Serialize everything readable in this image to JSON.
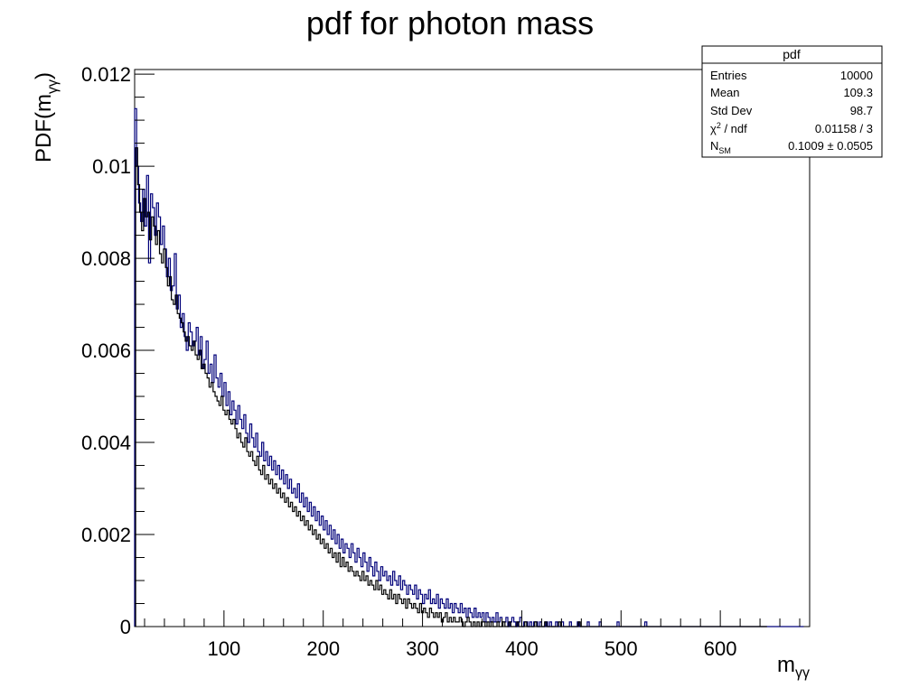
{
  "chart_data": {
    "type": "bar",
    "title": "pdf for photon mass",
    "xlabel": "m",
    "xlabel_sub": "γγ",
    "ylabel": "PDF(m",
    "ylabel_sub": "γγ",
    "ylabel_close": ")",
    "xlim": [
      10,
      690
    ],
    "ylim": [
      0,
      0.0121
    ],
    "x_ticks": [
      100,
      200,
      300,
      400,
      500,
      600
    ],
    "x_tick_labels": [
      "100",
      "200",
      "300",
      "400",
      "500",
      "600"
    ],
    "y_ticks": [
      0,
      0.002,
      0.004,
      0.006,
      0.008,
      0.01,
      0.012
    ],
    "y_tick_labels": [
      "0",
      "0.002",
      "0.004",
      "0.006",
      "0.008",
      "0.01",
      "0.012"
    ],
    "series": [
      {
        "color": "#00007a",
        "bin_start": 10,
        "bin_width": 2,
        "values": [
          0.01125,
          0.01,
          0.0092,
          0.0088,
          0.0095,
          0.0087,
          0.0098,
          0.0079,
          0.0094,
          0.0091,
          0.0085,
          0.0092,
          0.0089,
          0.0083,
          0.0087,
          0.0082,
          0.0076,
          0.008,
          0.0073,
          0.0074,
          0.0081,
          0.0069,
          0.0072,
          0.0065,
          0.0068,
          0.0063,
          0.006,
          0.0066,
          0.0064,
          0.0061,
          0.0062,
          0.0065,
          0.0059,
          0.0063,
          0.0056,
          0.0058,
          0.0062,
          0.0055,
          0.0057,
          0.0053,
          0.0059,
          0.0054,
          0.0052,
          0.0055,
          0.005,
          0.0053,
          0.0048,
          0.0051,
          0.0046,
          0.0049,
          0.0047,
          0.0044,
          0.0048,
          0.0045,
          0.0043,
          0.0046,
          0.0042,
          0.004,
          0.0044,
          0.0041,
          0.0039,
          0.0042,
          0.0038,
          0.0037,
          0.004,
          0.0036,
          0.0038,
          0.0035,
          0.0037,
          0.0034,
          0.0036,
          0.0033,
          0.0035,
          0.0032,
          0.0034,
          0.0031,
          0.0033,
          0.003,
          0.0032,
          0.0029,
          0.003,
          0.0028,
          0.0031,
          0.0027,
          0.0029,
          0.0026,
          0.0028,
          0.0025,
          0.0027,
          0.0024,
          0.0026,
          0.0023,
          0.0025,
          0.0022,
          0.0024,
          0.0021,
          0.0023,
          0.002,
          0.0022,
          0.0019,
          0.0021,
          0.0018,
          0.002,
          0.0017,
          0.0019,
          0.0016,
          0.0018,
          0.0017,
          0.0015,
          0.0018,
          0.0016,
          0.0014,
          0.0017,
          0.0015,
          0.0013,
          0.0016,
          0.0014,
          0.0012,
          0.0015,
          0.0013,
          0.0011,
          0.0014,
          0.0012,
          0.001,
          0.0013,
          0.0011,
          0.0012,
          0.001,
          0.0011,
          0.0009,
          0.0012,
          0.001,
          0.0009,
          0.0011,
          0.0008,
          0.001,
          0.0009,
          0.0007,
          0.0009,
          0.0008,
          0.0007,
          0.0009,
          0.0006,
          0.0008,
          0.0007,
          0.0005,
          0.0007,
          0.0006,
          0.0008,
          0.0005,
          0.0006,
          0.0005,
          0.0007,
          0.0004,
          0.0006,
          0.0005,
          0.0004,
          0.0006,
          0.0004,
          0.0005,
          0.0003,
          0.0005,
          0.0004,
          0.0003,
          0.0005,
          0.0003,
          0.0004,
          0.0002,
          0.0004,
          0.0003,
          0.0002,
          0.0004,
          0.0002,
          0.0003,
          0.0002,
          0.0003,
          0.0001,
          0.0003,
          0.0002,
          0.0001,
          0.0002,
          0.0001,
          0.0003,
          0.0001,
          0.0002,
          0.0001,
          0.0001,
          0.0002,
          0.0,
          0.0001,
          0.0002,
          0.0001,
          0.0,
          0.0001,
          0.0002,
          0.0,
          0.0001,
          0.0001,
          0.0,
          0.0001,
          0.0,
          0.0001,
          0.0001,
          0.0,
          0.0001,
          0.0,
          0.0,
          0.0001,
          0.0,
          0.0001,
          0.0,
          0.0,
          0.0001,
          0.0,
          0.0,
          0.0001,
          0.0,
          0.0,
          0.0,
          0.0001,
          0.0,
          0.0,
          0.0,
          0.0001,
          0.0,
          0.0,
          0.0,
          0.0,
          0.0001,
          0.0,
          0.0,
          0.0,
          0.0,
          0.0,
          0.0001,
          0.0,
          0.0,
          0.0,
          0.0,
          0.0,
          0.0,
          0.0,
          0.0,
          0.0001,
          0.0,
          0.0,
          0.0,
          0.0,
          0.0,
          0.0,
          0.0,
          0.0,
          0.0,
          0.0,
          0.0,
          0.0,
          0.0,
          0.0001,
          0.0,
          0.0,
          0.0,
          0.0,
          0.0,
          0.0,
          0.0,
          0.0,
          0.0,
          0.0,
          0.0,
          0.0,
          0.0,
          0.0,
          0.0,
          0.0,
          0.0,
          0.0,
          0.0,
          0.0,
          0.0,
          0.0,
          0.0,
          0.0,
          0.0,
          0.0,
          0.0,
          0.0,
          0.0,
          0.0,
          0.0,
          0.0,
          0.0,
          0.0,
          0.0,
          0.0,
          0.0,
          0.0,
          0.0,
          0.0,
          0.0,
          0.0,
          0.0,
          0.0,
          0.0,
          0.0,
          0.0,
          0.0,
          0.0,
          0.0,
          0.0,
          0.0,
          0.0,
          0.0,
          0.0,
          0.0,
          0.0,
          0.0,
          0.0,
          0.0,
          0.0,
          0.0,
          0.0,
          0.0,
          0.0,
          0.0,
          0.0,
          0.0,
          0.0,
          0.0,
          0.0,
          0.0,
          0.0,
          0.0,
          0.0,
          0.0,
          0.0,
          0.0,
          0.0
        ]
      },
      {
        "color": "#000000",
        "bin_start": 11,
        "bin_width": 2,
        "values": [
          0.0104,
          0.0096,
          0.009,
          0.0086,
          0.0093,
          0.0089,
          0.009,
          0.0084,
          0.0089,
          0.0087,
          0.0083,
          0.0086,
          0.0081,
          0.0079,
          0.0082,
          0.0078,
          0.0074,
          0.0076,
          0.0071,
          0.007,
          0.0072,
          0.0068,
          0.0067,
          0.0066,
          0.0064,
          0.0062,
          0.0063,
          0.0061,
          0.006,
          0.0062,
          0.0059,
          0.0058,
          0.006,
          0.0056,
          0.0057,
          0.0055,
          0.0054,
          0.0052,
          0.0053,
          0.0051,
          0.005,
          0.0049,
          0.0048,
          0.005,
          0.0047,
          0.0046,
          0.0047,
          0.0045,
          0.0044,
          0.0045,
          0.0043,
          0.0041,
          0.0042,
          0.004,
          0.0039,
          0.0041,
          0.0038,
          0.0037,
          0.0038,
          0.0036,
          0.0035,
          0.0037,
          0.0034,
          0.0033,
          0.0035,
          0.0032,
          0.0033,
          0.0031,
          0.0032,
          0.003,
          0.0031,
          0.0029,
          0.003,
          0.0028,
          0.0029,
          0.0027,
          0.0028,
          0.0026,
          0.0027,
          0.0025,
          0.0026,
          0.0024,
          0.0025,
          0.0023,
          0.0024,
          0.0022,
          0.0023,
          0.0021,
          0.0022,
          0.002,
          0.0021,
          0.0019,
          0.002,
          0.0018,
          0.0019,
          0.0017,
          0.0018,
          0.0016,
          0.0017,
          0.0015,
          0.0016,
          0.0014,
          0.0016,
          0.0013,
          0.0015,
          0.0013,
          0.0014,
          0.0012,
          0.0013,
          0.0012,
          0.0011,
          0.0012,
          0.0011,
          0.001,
          0.0012,
          0.001,
          0.0011,
          0.0009,
          0.001,
          0.0009,
          0.0008,
          0.001,
          0.0008,
          0.0009,
          0.0007,
          0.0008,
          0.0007,
          0.0006,
          0.0008,
          0.0006,
          0.0007,
          0.0005,
          0.0007,
          0.0006,
          0.0005,
          0.0006,
          0.0004,
          0.0006,
          0.0005,
          0.0004,
          0.0005,
          0.0004,
          0.0003,
          0.0005,
          0.0003,
          0.0004,
          0.0003,
          0.0002,
          0.0004,
          0.0003,
          0.0002,
          0.0003,
          0.0002,
          0.0003,
          0.0001,
          0.0002,
          0.0003,
          0.0001,
          0.0002,
          0.0001,
          0.0002,
          0.0001,
          0.0001,
          0.0002,
          0.0001,
          0.0,
          0.0001,
          0.0002,
          0.0001,
          0.0,
          0.0001,
          0.0,
          0.0001,
          0.0,
          0.0001,
          0.0001,
          0.0,
          0.0001,
          0.0,
          0.0001,
          0.0,
          0.0,
          0.0001,
          0.0,
          0.0,
          0.0001,
          0.0,
          0.0,
          0.0001,
          0.0,
          0.0,
          0.0,
          0.0001,
          0.0,
          0.0,
          0.0,
          0.0001,
          0.0,
          0.0,
          0.0,
          0.0,
          0.0001,
          0.0,
          0.0,
          0.0,
          0.0,
          0.0001,
          0.0,
          0.0,
          0.0,
          0.0,
          0.0,
          0.0,
          0.0001,
          0.0,
          0.0,
          0.0,
          0.0,
          0.0,
          0.0,
          0.0,
          0.0,
          0.0,
          0.0001,
          0.0,
          0.0,
          0.0,
          0.0,
          0.0,
          0.0,
          0.0,
          0.0,
          0.0,
          0.0,
          0.0,
          0.0,
          0.0,
          0.0,
          0.0,
          0.0,
          0.0,
          0.0,
          0.0,
          0.0,
          0.0,
          0.0,
          0.0,
          0.0,
          0.0,
          0.0,
          0.0,
          0.0,
          0.0,
          0.0,
          0.0,
          0.0,
          0.0,
          0.0,
          0.0,
          0.0,
          0.0,
          0.0,
          0.0,
          0.0,
          0.0,
          0.0,
          0.0,
          0.0,
          0.0,
          0.0,
          0.0,
          0.0,
          0.0,
          0.0,
          0.0,
          0.0,
          0.0,
          0.0,
          0.0,
          0.0,
          0.0,
          0.0,
          0.0,
          0.0,
          0.0,
          0.0,
          0.0,
          0.0,
          0.0,
          0.0,
          0.0,
          0.0,
          0.0,
          0.0,
          0.0,
          0.0,
          0.0,
          0.0,
          0.0,
          0.0,
          0.0,
          0.0,
          0.0,
          0.0,
          0.0,
          0.0,
          0.0,
          0.0,
          0.0,
          0.0,
          0.0,
          0.0,
          0.0,
          0.0,
          0.0,
          0.0,
          0.0,
          0.0
        ]
      }
    ]
  },
  "stats_box": {
    "title": "pdf",
    "rows": [
      {
        "label": "Entries",
        "value": "10000"
      },
      {
        "label": "Mean",
        "value": "109.3"
      },
      {
        "label": "Std Dev",
        "value": "98.7"
      },
      {
        "label": "χ",
        "label_sup": "2",
        "label_rest": " / ndf",
        "value": "0.01158 / 3"
      },
      {
        "label": "N",
        "label_sub": "SM",
        "value": "0.1009 ± 0.0505"
      }
    ]
  }
}
